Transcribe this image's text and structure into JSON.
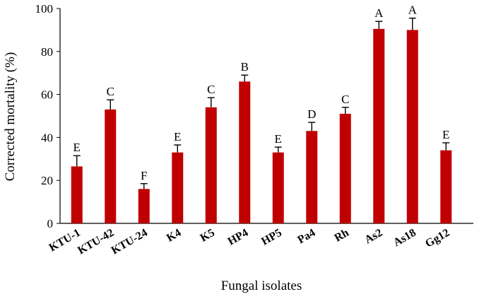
{
  "chart_data": {
    "type": "bar",
    "xlabel": "Fungal isolates",
    "ylabel": "Corrected mortality (%)",
    "ylim": [
      0,
      100
    ],
    "yticks": [
      0,
      20,
      40,
      60,
      80,
      100
    ],
    "categories": [
      "KTU-1",
      "KTU-42",
      "KTU-24",
      "K4",
      "K5",
      "HP4",
      "HP5",
      "Pa4",
      "Rh",
      "As2",
      "As18",
      "Gg12"
    ],
    "values": [
      26.5,
      53,
      16,
      33,
      54,
      66,
      33,
      43,
      51,
      90.5,
      90,
      34
    ],
    "errors": [
      5,
      4.5,
      2.5,
      3.5,
      4.5,
      3,
      2.5,
      4,
      3,
      3.5,
      5.5,
      3.5
    ],
    "letters": [
      "E",
      "C",
      "F",
      "E",
      "C",
      "B",
      "E",
      "D",
      "C",
      "A",
      "A",
      "E"
    ],
    "bar_color": "#c00000",
    "grid": false,
    "legend": "none"
  }
}
